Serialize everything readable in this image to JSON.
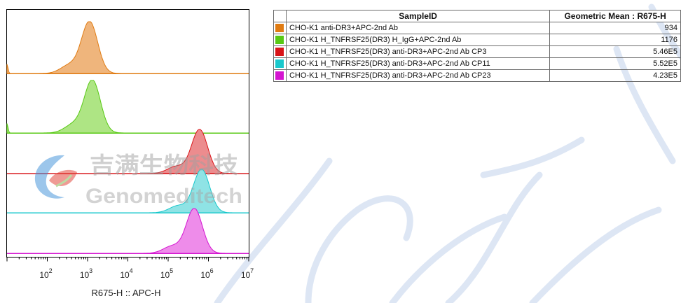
{
  "watermark": {
    "logo_cn": "吉满生物科技",
    "logo_en": "Genomeditech"
  },
  "chart_data": {
    "type": "histogram-overlay",
    "xlabel": "R675-H :: APC-H",
    "x_scale": "log",
    "xlim": [
      10,
      10000000
    ],
    "x_ticks": [
      {
        "base": "10",
        "exp": "2"
      },
      {
        "base": "10",
        "exp": "3"
      },
      {
        "base": "10",
        "exp": "4"
      },
      {
        "base": "10",
        "exp": "5"
      },
      {
        "base": "10",
        "exp": "6"
      },
      {
        "base": "10",
        "exp": "7"
      }
    ],
    "table_headers": [
      "SampleID",
      "Geometric Mean : R675-H"
    ],
    "series": [
      {
        "name": "CHO-K1 anti-DR3+APC-2nd Ab",
        "geo_mean": "934",
        "color": "#e07b12",
        "fill": "#efb57c",
        "peak_log": 3.05,
        "sigma": 0.2,
        "shoulder_log": 2.55
      },
      {
        "name": "CHO-K1 H_TNFRSF25(DR3) H_IgG+APC-2nd Ab",
        "geo_mean": "1176",
        "color": "#58c914",
        "fill": "#aee584",
        "peak_log": 3.12,
        "sigma": 0.2,
        "shoulder_log": 2.65
      },
      {
        "name": "CHO-K1 H_TNFRSF25(DR3) anti-DR3+APC-2nd Ab CP3",
        "geo_mean": "5.46E5",
        "color": "#d81418",
        "fill": "#ec8c8e",
        "peak_log": 5.78,
        "sigma": 0.2,
        "shoulder_log": 5.2
      },
      {
        "name": "CHO-K1 H_TNFRSF25(DR3) anti-DR3+APC-2nd Ab CP11",
        "geo_mean": "5.52E5",
        "color": "#1ac8cc",
        "fill": "#8fe3e5",
        "peak_log": 5.83,
        "sigma": 0.2,
        "shoulder_log": 5.25
      },
      {
        "name": "CHO-K1 H_TNFRSF25(DR3) anti-DR3+APC-2nd Ab CP23",
        "geo_mean": "4.23E5",
        "color": "#d414d0",
        "fill": "#ee8cea",
        "peak_log": 5.65,
        "sigma": 0.2,
        "shoulder_log": 5.1
      }
    ]
  }
}
